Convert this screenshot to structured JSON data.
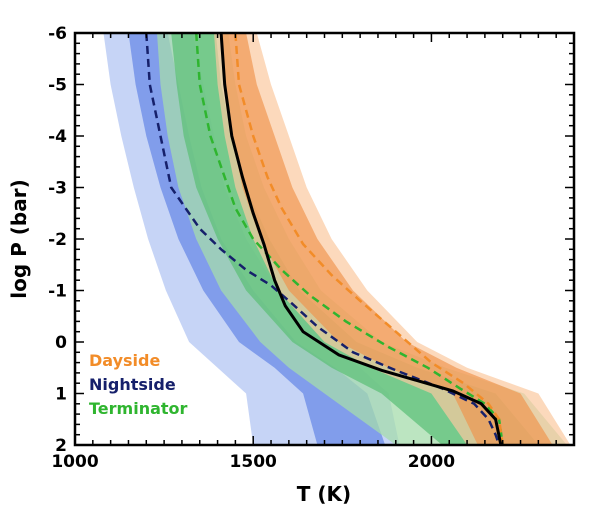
{
  "chart_data": {
    "type": "line",
    "xlabel": "T (K)",
    "ylabel": "log P (bar)",
    "xlim": [
      1000,
      2400
    ],
    "ylim": [
      2,
      -6
    ],
    "x_ticks": [
      1000,
      1500,
      2000
    ],
    "y_ticks": [
      -6,
      -5,
      -4,
      -3,
      -2,
      -1,
      0,
      1,
      2
    ],
    "y_tick_labels": [
      "-6",
      "-5",
      "-4",
      "-3",
      "-2",
      "-1",
      "0",
      "1",
      "2"
    ],
    "grid": false,
    "legend": {
      "placement": "lower-left",
      "entries": [
        {
          "label": "Dayside",
          "color": "#f28c28"
        },
        {
          "label": "Nightside",
          "color": "#16206b"
        },
        {
          "label": "Terminator",
          "color": "#2fb52f"
        }
      ]
    },
    "bands": [
      {
        "series": "Nightside",
        "level": "outer",
        "color": "#bccdf5",
        "opacity": 0.85,
        "left": [
          [
            1080,
            -6
          ],
          [
            1100,
            -5
          ],
          [
            1130,
            -4
          ],
          [
            1165,
            -3
          ],
          [
            1205,
            -2
          ],
          [
            1255,
            -1
          ],
          [
            1320,
            0
          ],
          [
            1400,
            0.5
          ],
          [
            1480,
            1
          ],
          [
            1500,
            2
          ]
        ],
        "right": [
          [
            1330,
            -6
          ],
          [
            1360,
            -5
          ],
          [
            1390,
            -4
          ],
          [
            1420,
            -3
          ],
          [
            1480,
            -2
          ],
          [
            1570,
            -1
          ],
          [
            1700,
            0
          ],
          [
            1800,
            0.5
          ],
          [
            1880,
            1
          ],
          [
            1910,
            2
          ]
        ]
      },
      {
        "series": "Nightside",
        "level": "inner",
        "color": "#6f8ee8",
        "opacity": 0.8,
        "left": [
          [
            1150,
            -6
          ],
          [
            1170,
            -5
          ],
          [
            1200,
            -4
          ],
          [
            1240,
            -3
          ],
          [
            1290,
            -2
          ],
          [
            1360,
            -1
          ],
          [
            1460,
            0
          ],
          [
            1560,
            0.5
          ],
          [
            1640,
            1
          ],
          [
            1680,
            2
          ]
        ],
        "right": [
          [
            1260,
            -6
          ],
          [
            1290,
            -5
          ],
          [
            1320,
            -4
          ],
          [
            1355,
            -3
          ],
          [
            1410,
            -2
          ],
          [
            1500,
            -1
          ],
          [
            1620,
            0
          ],
          [
            1730,
            0.5
          ],
          [
            1820,
            1
          ],
          [
            1870,
            2
          ]
        ]
      },
      {
        "series": "Terminator",
        "level": "outer",
        "color": "#a5dcac",
        "opacity": 0.75,
        "left": [
          [
            1230,
            -6
          ],
          [
            1240,
            -5
          ],
          [
            1260,
            -4
          ],
          [
            1290,
            -3
          ],
          [
            1340,
            -2
          ],
          [
            1410,
            -1
          ],
          [
            1520,
            0
          ],
          [
            1600,
            0.5
          ],
          [
            1700,
            1
          ],
          [
            1900,
            2
          ]
        ],
        "right": [
          [
            1430,
            -6
          ],
          [
            1450,
            -5
          ],
          [
            1480,
            -4
          ],
          [
            1530,
            -3
          ],
          [
            1600,
            -2
          ],
          [
            1690,
            -1
          ],
          [
            1860,
            0
          ],
          [
            2040,
            0.5
          ],
          [
            2260,
            1
          ],
          [
            2380,
            2
          ]
        ]
      },
      {
        "series": "Terminator",
        "level": "inner",
        "color": "#5fc07a",
        "opacity": 0.75,
        "left": [
          [
            1270,
            -6
          ],
          [
            1285,
            -5
          ],
          [
            1305,
            -4
          ],
          [
            1340,
            -3
          ],
          [
            1400,
            -2
          ],
          [
            1480,
            -1
          ],
          [
            1610,
            0
          ],
          [
            1720,
            0.5
          ],
          [
            1860,
            1
          ],
          [
            2030,
            2
          ]
        ],
        "right": [
          [
            1395,
            -6
          ],
          [
            1410,
            -5
          ],
          [
            1440,
            -4
          ],
          [
            1480,
            -3
          ],
          [
            1545,
            -2
          ],
          [
            1630,
            -1
          ],
          [
            1790,
            0
          ],
          [
            1960,
            0.5
          ],
          [
            2180,
            1
          ],
          [
            2300,
            2
          ]
        ]
      },
      {
        "series": "Dayside",
        "level": "outer",
        "color": "#fbc9a0",
        "opacity": 0.7,
        "left": [
          [
            1390,
            -6
          ],
          [
            1400,
            -5
          ],
          [
            1420,
            -4
          ],
          [
            1450,
            -3
          ],
          [
            1500,
            -2
          ],
          [
            1570,
            -1
          ],
          [
            1700,
            0
          ],
          [
            1830,
            0.5
          ],
          [
            2000,
            1
          ],
          [
            2100,
            2
          ]
        ],
        "right": [
          [
            1510,
            -6
          ],
          [
            1550,
            -5
          ],
          [
            1600,
            -4
          ],
          [
            1650,
            -3
          ],
          [
            1720,
            -2
          ],
          [
            1820,
            -1
          ],
          [
            1960,
            0
          ],
          [
            2100,
            0.5
          ],
          [
            2300,
            1
          ],
          [
            2390,
            2
          ]
        ]
      },
      {
        "series": "Dayside",
        "level": "inner",
        "color": "#f0924a",
        "opacity": 0.65,
        "left": [
          [
            1410,
            -6
          ],
          [
            1420,
            -5
          ],
          [
            1440,
            -4
          ],
          [
            1470,
            -3
          ],
          [
            1520,
            -2
          ],
          [
            1600,
            -1
          ],
          [
            1740,
            0
          ],
          [
            1880,
            0.5
          ],
          [
            2060,
            1
          ],
          [
            2130,
            2
          ]
        ],
        "right": [
          [
            1480,
            -6
          ],
          [
            1510,
            -5
          ],
          [
            1560,
            -4
          ],
          [
            1610,
            -3
          ],
          [
            1680,
            -2
          ],
          [
            1780,
            -1
          ],
          [
            1930,
            0
          ],
          [
            2070,
            0.5
          ],
          [
            2250,
            1
          ],
          [
            2340,
            2
          ]
        ]
      }
    ],
    "series": [
      {
        "name": "Nightside",
        "color": "#16206b",
        "dash": "dashed",
        "points": [
          [
            1200,
            -6
          ],
          [
            1210,
            -5
          ],
          [
            1240,
            -4
          ],
          [
            1270,
            -3
          ],
          [
            1310,
            -2.6
          ],
          [
            1350,
            -2.2
          ],
          [
            1410,
            -1.8
          ],
          [
            1480,
            -1.4
          ],
          [
            1550,
            -1.1
          ],
          [
            1600,
            -0.8
          ],
          [
            1680,
            -0.3
          ],
          [
            1780,
            0.2
          ],
          [
            1900,
            0.55
          ],
          [
            2030,
            0.9
          ],
          [
            2120,
            1.2
          ],
          [
            2160,
            1.5
          ],
          [
            2180,
            1.8
          ],
          [
            2190,
            2
          ]
        ]
      },
      {
        "name": "Terminator",
        "color": "#2fb52f",
        "dash": "dashed",
        "points": [
          [
            1340,
            -6
          ],
          [
            1350,
            -5
          ],
          [
            1380,
            -4
          ],
          [
            1420,
            -3.2
          ],
          [
            1450,
            -2.6
          ],
          [
            1500,
            -2
          ],
          [
            1580,
            -1.4
          ],
          [
            1660,
            -0.9
          ],
          [
            1760,
            -0.4
          ],
          [
            1880,
            0.1
          ],
          [
            1990,
            0.5
          ],
          [
            2080,
            0.9
          ],
          [
            2150,
            1.2
          ],
          [
            2190,
            1.5
          ],
          [
            2200,
            2
          ]
        ]
      },
      {
        "name": "Dayside",
        "color": "#f28c28",
        "dash": "dashed",
        "points": [
          [
            1450,
            -6
          ],
          [
            1460,
            -5
          ],
          [
            1500,
            -4
          ],
          [
            1540,
            -3.2
          ],
          [
            1580,
            -2.6
          ],
          [
            1640,
            -1.9
          ],
          [
            1720,
            -1.3
          ],
          [
            1800,
            -0.8
          ],
          [
            1900,
            -0.2
          ],
          [
            2000,
            0.4
          ],
          [
            2090,
            0.8
          ],
          [
            2160,
            1.2
          ],
          [
            2190,
            1.5
          ],
          [
            2200,
            2
          ]
        ]
      },
      {
        "name": "",
        "color": "#000000",
        "dash": "solid",
        "points": [
          [
            1410,
            -6
          ],
          [
            1420,
            -5
          ],
          [
            1440,
            -4
          ],
          [
            1470,
            -3.2
          ],
          [
            1500,
            -2.5
          ],
          [
            1530,
            -1.9
          ],
          [
            1560,
            -1.2
          ],
          [
            1590,
            -0.7
          ],
          [
            1640,
            -0.2
          ],
          [
            1740,
            0.25
          ],
          [
            1860,
            0.55
          ],
          [
            1960,
            0.75
          ],
          [
            2060,
            0.95
          ],
          [
            2140,
            1.2
          ],
          [
            2180,
            1.5
          ],
          [
            2195,
            2
          ]
        ]
      }
    ]
  }
}
